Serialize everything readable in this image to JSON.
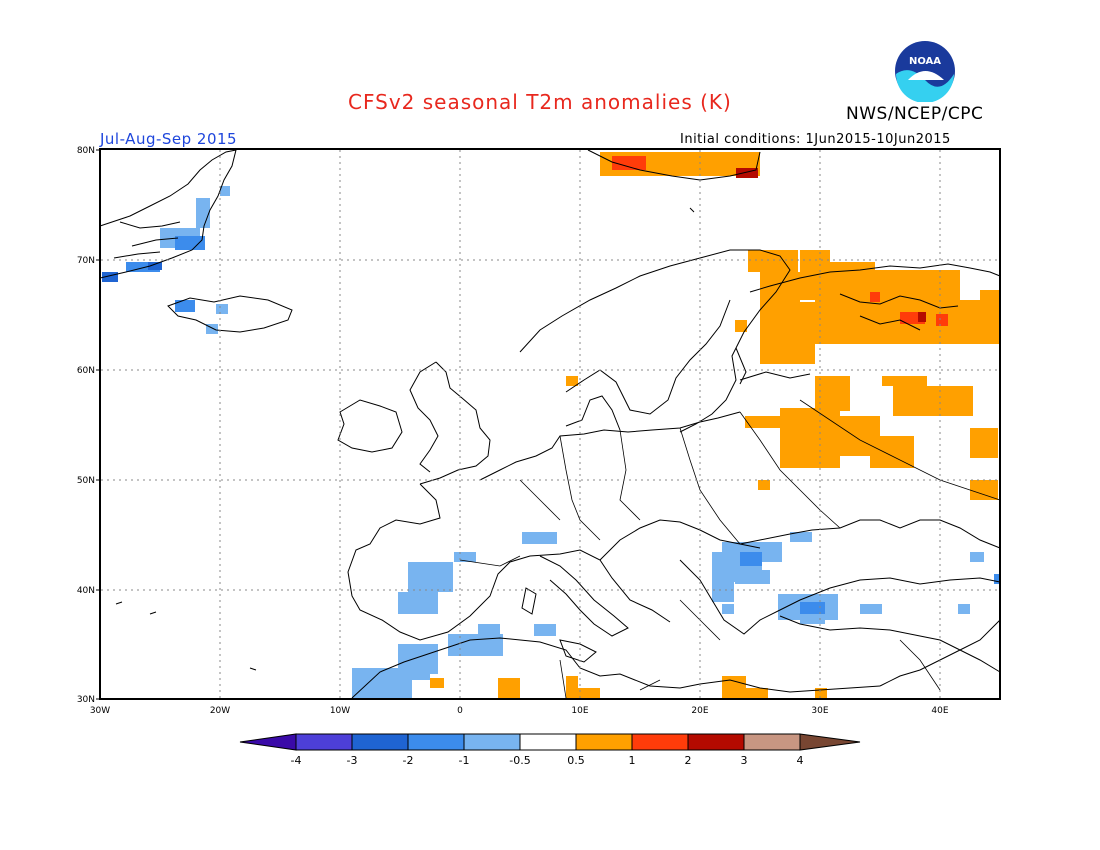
{
  "header": {
    "title": "CFSv2 seasonal T2m anomalies (K)",
    "season": "Jul-Aug-Sep 2015",
    "initial_conditions": "Initial conditions: 1Jun2015-10Jun2015",
    "org": "NWS/NCEP/CPC",
    "logo_text": "NOAA"
  },
  "axes": {
    "lat_labels": [
      "80N",
      "70N",
      "60N",
      "50N",
      "40N",
      "30N"
    ],
    "lon_labels": [
      "30W",
      "20W",
      "10W",
      "0",
      "10E",
      "20E",
      "30E",
      "40E"
    ]
  },
  "colorbar": {
    "labels": [
      "-4",
      "-3",
      "-2",
      "-1",
      "-0.5",
      "0.5",
      "1",
      "2",
      "3",
      "4"
    ],
    "colors": [
      "#3a0aa8",
      "#4d3fd8",
      "#1f64d2",
      "#3c8cec",
      "#78b4f0",
      "#ffffff",
      "#ffa000",
      "#ff3c0a",
      "#b40a00",
      "#c89682",
      "#784632"
    ]
  },
  "colors": {
    "title": "#e8281e",
    "season": "#1e46dc",
    "warm": "#ffa000",
    "warm_strong": "#ff3c0a",
    "warm_stronger": "#b40a00",
    "cool": "#78b4f0",
    "cool_mid": "#3c8cec",
    "cool_strong": "#1f64d2"
  }
}
